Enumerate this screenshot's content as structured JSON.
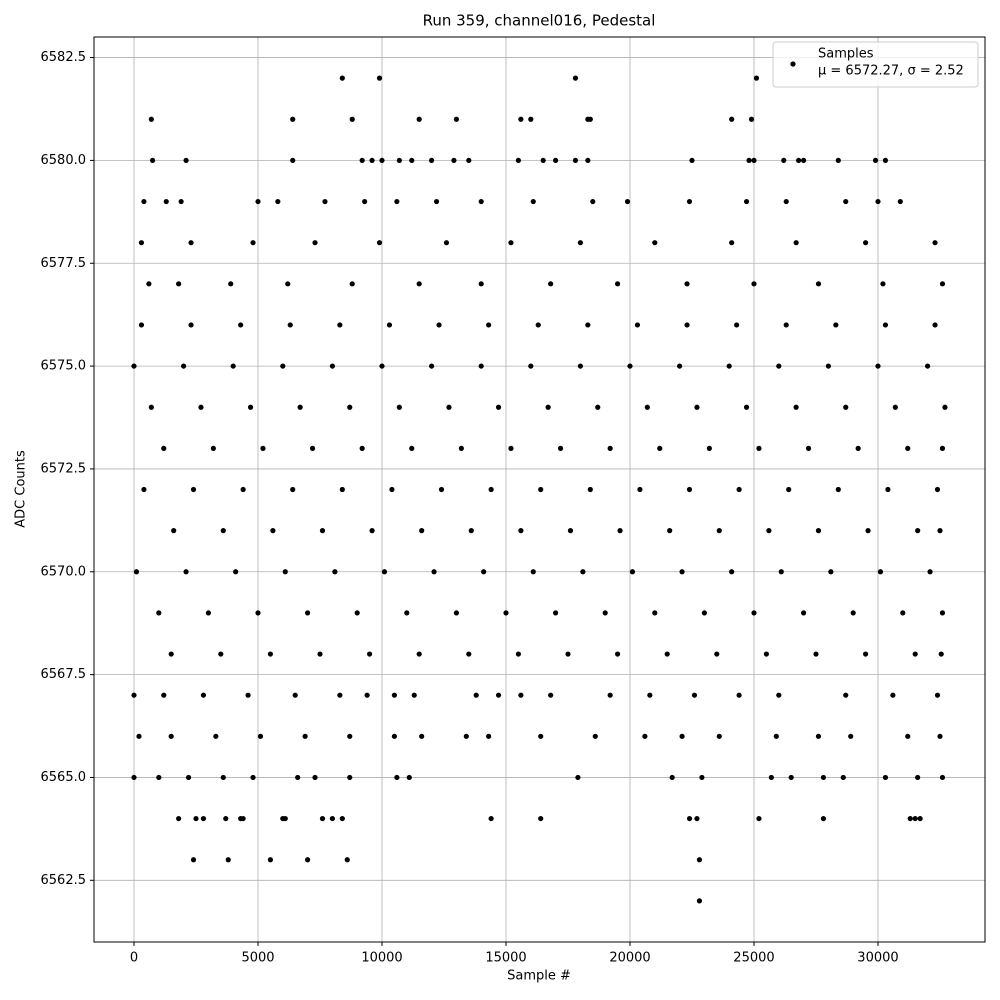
{
  "chart_data": {
    "type": "scatter",
    "title": "Run 359, channel016, Pedestal",
    "x_label": "Sample #",
    "y_label": "ADC Counts",
    "xlim": [
      -1613,
      34315
    ],
    "ylim": [
      6561.0,
      6583.0
    ],
    "xticks": [
      0,
      5000,
      10000,
      15000,
      20000,
      25000,
      30000
    ],
    "yticks": [
      6562.5,
      {
        "value": 6565,
        "label": "6565.0"
      },
      6567.5,
      {
        "value": 6570,
        "label": "6570.0"
      },
      6572.5,
      {
        "value": 6575,
        "label": "6575.0"
      },
      6577.5,
      {
        "value": 6580,
        "label": "6580.0"
      },
      6582.5
    ],
    "grid": true,
    "legend": "upper right",
    "legend_note": "μ = 6572.27, σ = 2.52",
    "x": [
      300,
      2300,
      4300,
      6300,
      8300,
      10300,
      12300,
      14300,
      16300,
      18300,
      20300,
      22300,
      24300,
      26300,
      28300,
      30300,
      32300,
      0,
      2000,
      4000,
      6000,
      8000,
      10000,
      12000,
      14000,
      16000,
      18000,
      20000,
      22000,
      24000,
      26000,
      28000,
      30000,
      32000,
      700,
      2700,
      4700,
      6700,
      8700,
      10700,
      12700,
      14700,
      16700,
      18700,
      20700,
      22700,
      24700,
      26700,
      28700,
      30700,
      32700,
      1200,
      3200,
      5200,
      7200,
      9200,
      11200,
      13200,
      15200,
      17200,
      19200,
      21200,
      23200,
      25200,
      27200,
      29200,
      31200,
      32600,
      400,
      2400,
      4400,
      6400,
      8400,
      10400,
      12400,
      14400,
      16400,
      18400,
      20400,
      22400,
      24400,
      26400,
      28400,
      30400,
      32400,
      1600,
      3600,
      5600,
      7600,
      9600,
      11600,
      13600,
      15600,
      17600,
      19600,
      21600,
      23600,
      25600,
      27600,
      29600,
      31600,
      32500,
      100,
      2100,
      4100,
      6100,
      8100,
      10100,
      12100,
      14100,
      16100,
      18100,
      20100,
      22100,
      24100,
      26100,
      28100,
      30100,
      32100,
      1000,
      3000,
      5000,
      7000,
      9000,
      11000,
      13000,
      15000,
      17000,
      19000,
      21000,
      23000,
      25000,
      27000,
      29000,
      31000,
      32600,
      1500,
      3500,
      5500,
      7500,
      9500,
      11500,
      13500,
      15500,
      17500,
      19500,
      21500,
      23500,
      25500,
      27500,
      29500,
      31500,
      32550,
      600,
      1800,
      3900,
      6200,
      8800,
      11500,
      14000,
      16800,
      19500,
      22300,
      25000,
      27600,
      30200,
      32600,
      300,
      2300,
      4800,
      7300,
      9900,
      12600,
      15200,
      18000,
      21000,
      24100,
      26700,
      29500,
      32300,
      400,
      1300,
      1900,
      5000,
      5800,
      7700,
      9300,
      10600,
      12200,
      14000,
      16100,
      18500,
      19900,
      22400,
      24700,
      26300,
      28700,
      30000,
      30900,
      0,
      1200,
      2800,
      4600,
      6500,
      8300,
      9400,
      10500,
      11300,
      13800,
      14700,
      15600,
      16800,
      19200,
      20800,
      22600,
      24400,
      26000,
      28700,
      30600,
      32400,
      200,
      1500,
      3300,
      5100,
      6900,
      8700,
      10500,
      11600,
      13400,
      14300,
      16400,
      18600,
      20600,
      22100,
      23600,
      25900,
      27600,
      28900,
      31200,
      32500,
      0,
      1000,
      2200,
      3600,
      4800,
      6600,
      7300,
      8700,
      10600,
      11100,
      17900,
      21700,
      22900,
      25700,
      26500,
      27800,
      28600,
      30300,
      31600,
      32600,
      8400,
      9900,
      17800,
      25100,
      700,
      6400,
      8800,
      11500,
      13000,
      15600,
      16000,
      18300,
      18400,
      24100,
      24900,
      750,
      2100,
      6400,
      9200,
      9600,
      10000,
      10700,
      11200,
      12000,
      12900,
      13500,
      15500,
      16500,
      17000,
      17800,
      18300,
      22500,
      24800,
      25000,
      26200,
      26800,
      27000,
      28400,
      29900,
      30300,
      1800,
      2500,
      2800,
      3700,
      4300,
      4400,
      6000,
      6100,
      7600,
      8000,
      8400,
      14400,
      16400,
      22400,
      22700,
      25200,
      27800,
      31300,
      31500,
      31700,
      2400,
      3800,
      5500,
      7000,
      8600,
      22800,
      22800
    ],
    "series": [
      {
        "name": "Samples",
        "color": "#000000",
        "values": [
          6576,
          6576,
          6576,
          6576,
          6576,
          6576,
          6576,
          6576,
          6576,
          6576,
          6576,
          6576,
          6576,
          6576,
          6576,
          6576,
          6576,
          6575,
          6575,
          6575,
          6575,
          6575,
          6575,
          6575,
          6575,
          6575,
          6575,
          6575,
          6575,
          6575,
          6575,
          6575,
          6575,
          6575,
          6574,
          6574,
          6574,
          6574,
          6574,
          6574,
          6574,
          6574,
          6574,
          6574,
          6574,
          6574,
          6574,
          6574,
          6574,
          6574,
          6574,
          6573,
          6573,
          6573,
          6573,
          6573,
          6573,
          6573,
          6573,
          6573,
          6573,
          6573,
          6573,
          6573,
          6573,
          6573,
          6573,
          6573,
          6572,
          6572,
          6572,
          6572,
          6572,
          6572,
          6572,
          6572,
          6572,
          6572,
          6572,
          6572,
          6572,
          6572,
          6572,
          6572,
          6572,
          6571,
          6571,
          6571,
          6571,
          6571,
          6571,
          6571,
          6571,
          6571,
          6571,
          6571,
          6571,
          6571,
          6571,
          6571,
          6571,
          6571,
          6570,
          6570,
          6570,
          6570,
          6570,
          6570,
          6570,
          6570,
          6570,
          6570,
          6570,
          6570,
          6570,
          6570,
          6570,
          6570,
          6570,
          6569,
          6569,
          6569,
          6569,
          6569,
          6569,
          6569,
          6569,
          6569,
          6569,
          6569,
          6569,
          6569,
          6569,
          6569,
          6569,
          6569,
          6568,
          6568,
          6568,
          6568,
          6568,
          6568,
          6568,
          6568,
          6568,
          6568,
          6568,
          6568,
          6568,
          6568,
          6568,
          6568,
          6568,
          6577,
          6577,
          6577,
          6577,
          6577,
          6577,
          6577,
          6577,
          6577,
          6577,
          6577,
          6577,
          6577,
          6577,
          6578,
          6578,
          6578,
          6578,
          6578,
          6578,
          6578,
          6578,
          6578,
          6578,
          6578,
          6578,
          6578,
          6579,
          6579,
          6579,
          6579,
          6579,
          6579,
          6579,
          6579,
          6579,
          6579,
          6579,
          6579,
          6579,
          6579,
          6579,
          6579,
          6579,
          6579,
          6579,
          6567,
          6567,
          6567,
          6567,
          6567,
          6567,
          6567,
          6567,
          6567,
          6567,
          6567,
          6567,
          6567,
          6567,
          6567,
          6567,
          6567,
          6567,
          6567,
          6567,
          6567,
          6566,
          6566,
          6566,
          6566,
          6566,
          6566,
          6566,
          6566,
          6566,
          6566,
          6566,
          6566,
          6566,
          6566,
          6566,
          6566,
          6566,
          6566,
          6566,
          6566,
          6565,
          6565,
          6565,
          6565,
          6565,
          6565,
          6565,
          6565,
          6565,
          6565,
          6565,
          6565,
          6565,
          6565,
          6565,
          6565,
          6565,
          6565,
          6565,
          6565,
          6582,
          6582,
          6582,
          6582,
          6581,
          6581,
          6581,
          6581,
          6581,
          6581,
          6581,
          6581,
          6581,
          6581,
          6581,
          6580,
          6580,
          6580,
          6580,
          6580,
          6580,
          6580,
          6580,
          6580,
          6580,
          6580,
          6580,
          6580,
          6580,
          6580,
          6580,
          6580,
          6580,
          6580,
          6580,
          6580,
          6580,
          6580,
          6580,
          6580,
          6564,
          6564,
          6564,
          6564,
          6564,
          6564,
          6564,
          6564,
          6564,
          6564,
          6564,
          6564,
          6564,
          6564,
          6564,
          6564,
          6564,
          6564,
          6564,
          6564,
          6563,
          6563,
          6563,
          6563,
          6563,
          6563,
          6562
        ]
      }
    ]
  }
}
